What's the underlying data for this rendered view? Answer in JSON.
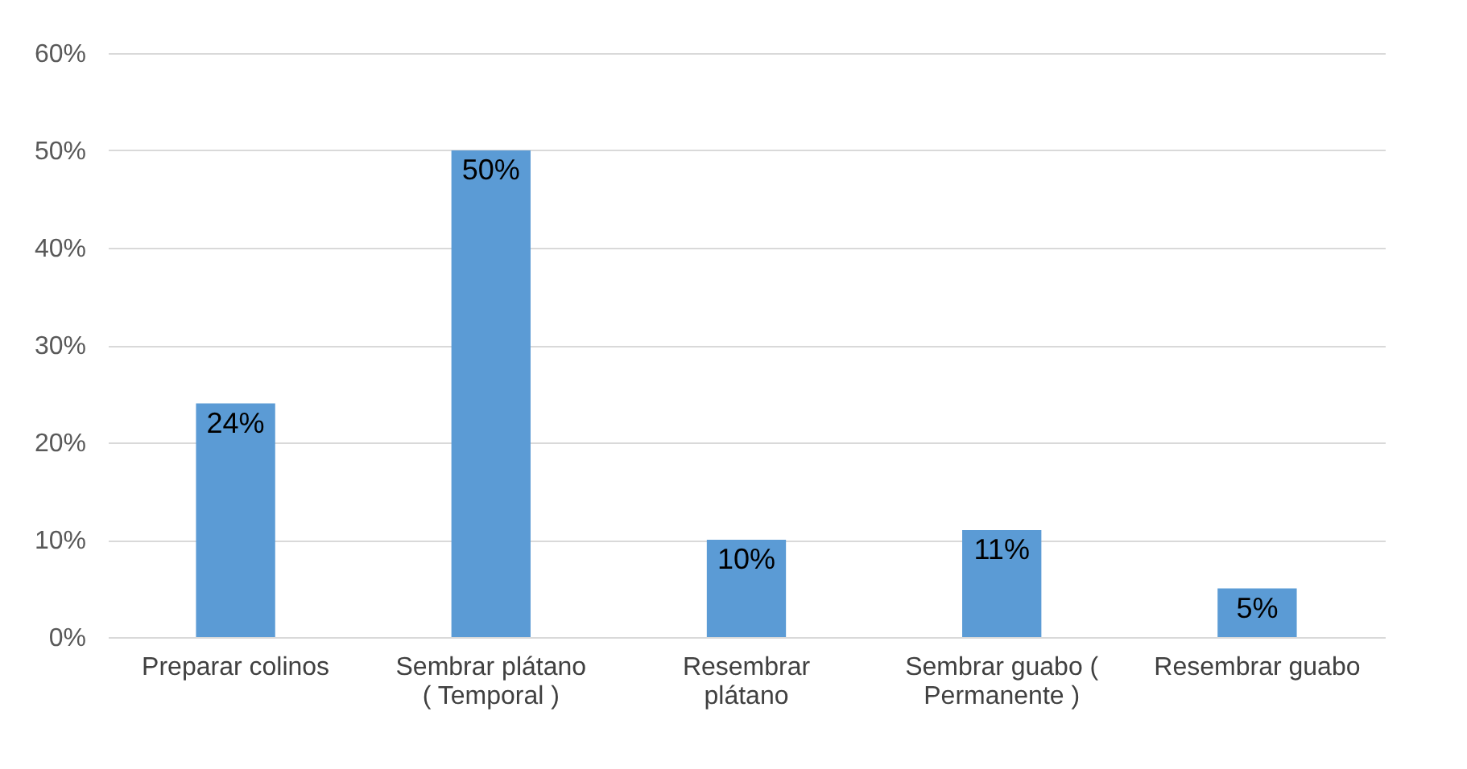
{
  "chart_data": {
    "type": "bar",
    "categories": [
      "Preparar colinos",
      "Sembrar plátano ( Temporal )",
      "Resembrar plátano",
      "Sembrar guabo ( Permanente )",
      "Resembrar guabo"
    ],
    "values": [
      24,
      50,
      10,
      11,
      5
    ],
    "color": "#5b9bd5",
    "value_labels": [
      "24%",
      "50%",
      "10%",
      "11%",
      "5%"
    ],
    "ylim": [
      0,
      60
    ],
    "yticks": [
      {
        "value": 0,
        "label": "0%"
      },
      {
        "value": 10,
        "label": "10%"
      },
      {
        "value": 20,
        "label": "20%"
      },
      {
        "value": 30,
        "label": "30%"
      },
      {
        "value": 40,
        "label": "40%"
      },
      {
        "value": 50,
        "label": "50%"
      },
      {
        "value": 60,
        "label": "60%"
      }
    ],
    "grid": "y"
  }
}
